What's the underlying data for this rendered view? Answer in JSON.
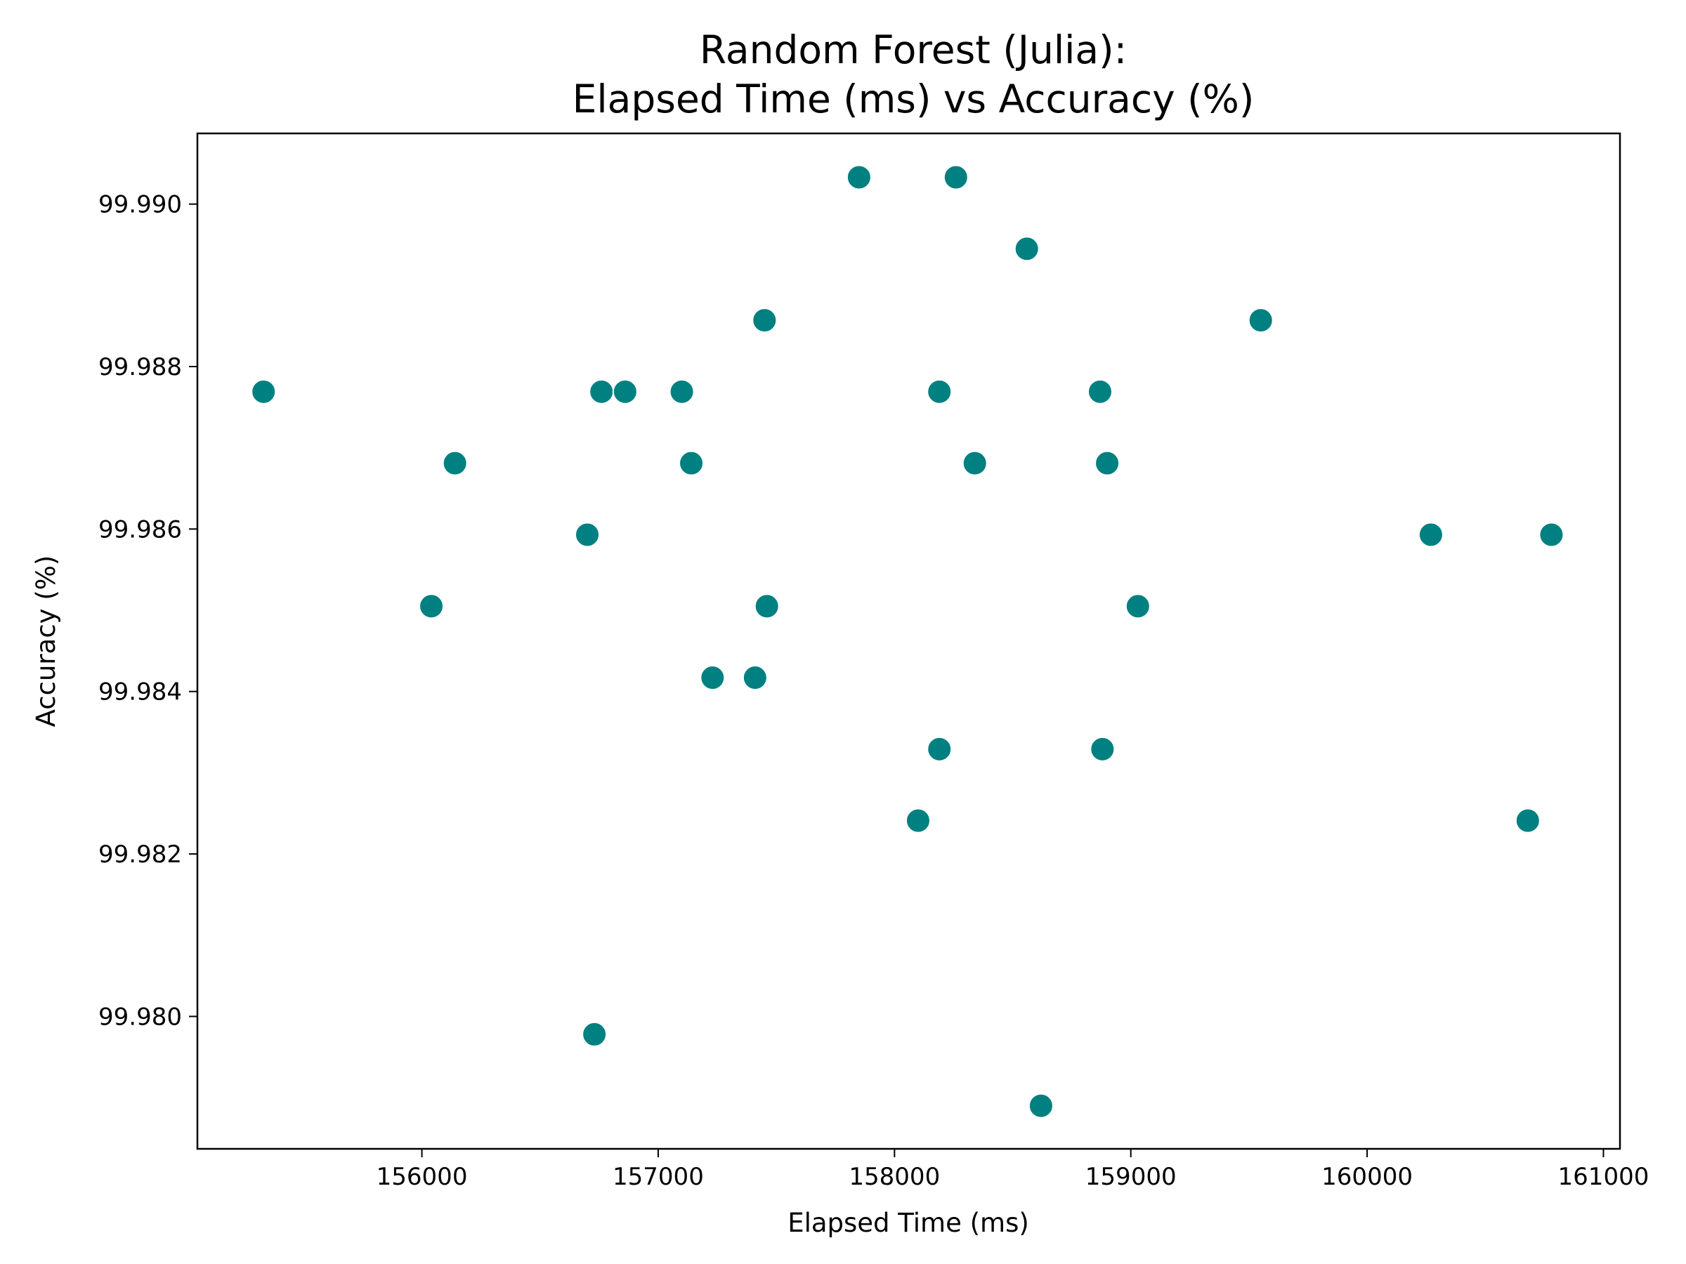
{
  "chart_data": {
    "type": "scatter",
    "title_line1": "Random Forest (Julia):",
    "title_line2": "Elapsed Time (ms) vs Accuracy (%)",
    "xlabel": "Elapsed Time (ms)",
    "ylabel": "Accuracy (%)",
    "xlim": [
      155050,
      161070
    ],
    "ylim": [
      99.97837,
      99.99087
    ],
    "x_ticks": [
      156000,
      157000,
      158000,
      159000,
      160000,
      161000
    ],
    "x_tick_labels": [
      "156000",
      "157000",
      "158000",
      "159000",
      "160000",
      "161000"
    ],
    "y_ticks": [
      99.98,
      99.982,
      99.984,
      99.986,
      99.988,
      99.99
    ],
    "y_tick_labels": [
      "99.980",
      "99.982",
      "99.984",
      "99.986",
      "99.988",
      "99.990"
    ],
    "marker_color": "#008080",
    "grid": false,
    "points": [
      {
        "x": 157850,
        "y": 99.99033
      },
      {
        "x": 158260,
        "y": 99.99033
      },
      {
        "x": 158560,
        "y": 99.98945
      },
      {
        "x": 157450,
        "y": 99.98857
      },
      {
        "x": 159550,
        "y": 99.98857
      },
      {
        "x": 155330,
        "y": 99.98769
      },
      {
        "x": 156760,
        "y": 99.98769
      },
      {
        "x": 156860,
        "y": 99.98769
      },
      {
        "x": 157100,
        "y": 99.98769
      },
      {
        "x": 158190,
        "y": 99.98769
      },
      {
        "x": 158870,
        "y": 99.98769
      },
      {
        "x": 156140,
        "y": 99.98681
      },
      {
        "x": 157140,
        "y": 99.98681
      },
      {
        "x": 158340,
        "y": 99.98681
      },
      {
        "x": 158900,
        "y": 99.98681
      },
      {
        "x": 156700,
        "y": 99.98593
      },
      {
        "x": 160270,
        "y": 99.98593
      },
      {
        "x": 160780,
        "y": 99.98593
      },
      {
        "x": 156040,
        "y": 99.98505
      },
      {
        "x": 157460,
        "y": 99.98505
      },
      {
        "x": 159030,
        "y": 99.98505
      },
      {
        "x": 157230,
        "y": 99.98417
      },
      {
        "x": 157410,
        "y": 99.98417
      },
      {
        "x": 158190,
        "y": 99.98329
      },
      {
        "x": 158880,
        "y": 99.98329
      },
      {
        "x": 158100,
        "y": 99.98241
      },
      {
        "x": 160680,
        "y": 99.98241
      },
      {
        "x": 156730,
        "y": 99.97978
      },
      {
        "x": 158620,
        "y": 99.9789
      }
    ]
  }
}
